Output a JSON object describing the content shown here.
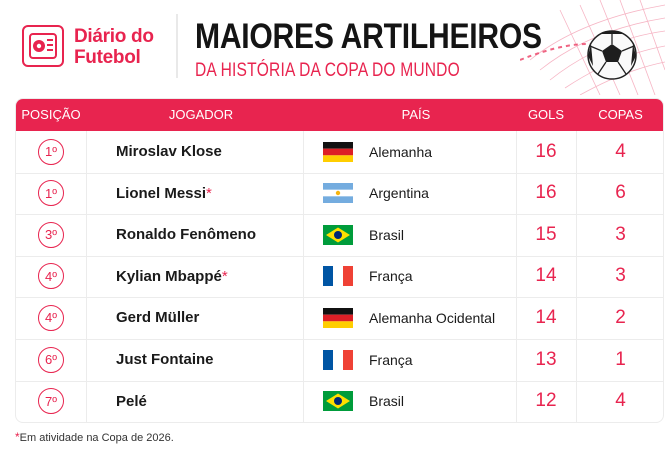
{
  "brand": {
    "line1": "Diário do",
    "line2": "Futebol"
  },
  "title": "MAIORES ARTILHEIROS",
  "subtitle": "DA HISTÓRIA DA COPA DO MUNDO",
  "colors": {
    "accent": "#e8244f",
    "text": "#1a1a1a"
  },
  "table": {
    "headers": {
      "position": "POSIÇÃO",
      "player": "JOGADOR",
      "country": "PAÍS",
      "goals": "GOLS",
      "cups": "COPAS"
    },
    "rows": [
      {
        "position": "1º",
        "player": "Miroslav Klose",
        "star": "",
        "flag": "germany",
        "country": "Alemanha",
        "goals": "16",
        "cups": "4"
      },
      {
        "position": "1º",
        "player": "Lionel Messi",
        "star": "*",
        "flag": "argentina",
        "country": "Argentina",
        "goals": "16",
        "cups": "6"
      },
      {
        "position": "3º",
        "player": "Ronaldo Fenômeno",
        "star": "",
        "flag": "brazil",
        "country": "Brasil",
        "goals": "15",
        "cups": "3"
      },
      {
        "position": "4º",
        "player": "Kylian Mbappé",
        "star": "*",
        "flag": "france",
        "country": "França",
        "goals": "14",
        "cups": "3"
      },
      {
        "position": "4º",
        "player": "Gerd Müller",
        "star": "",
        "flag": "germany",
        "country": "Alemanha Ocidental",
        "goals": "14",
        "cups": "2"
      },
      {
        "position": "6º",
        "player": "Just Fontaine",
        "star": "",
        "flag": "france",
        "country": "França",
        "goals": "13",
        "cups": "1"
      },
      {
        "position": "7º",
        "player": "Pelé",
        "star": "",
        "flag": "brazil",
        "country": "Brasil",
        "goals": "12",
        "cups": "4"
      }
    ]
  },
  "footnote": {
    "star": "*",
    "text": "Em atividade na Copa de 2026."
  }
}
